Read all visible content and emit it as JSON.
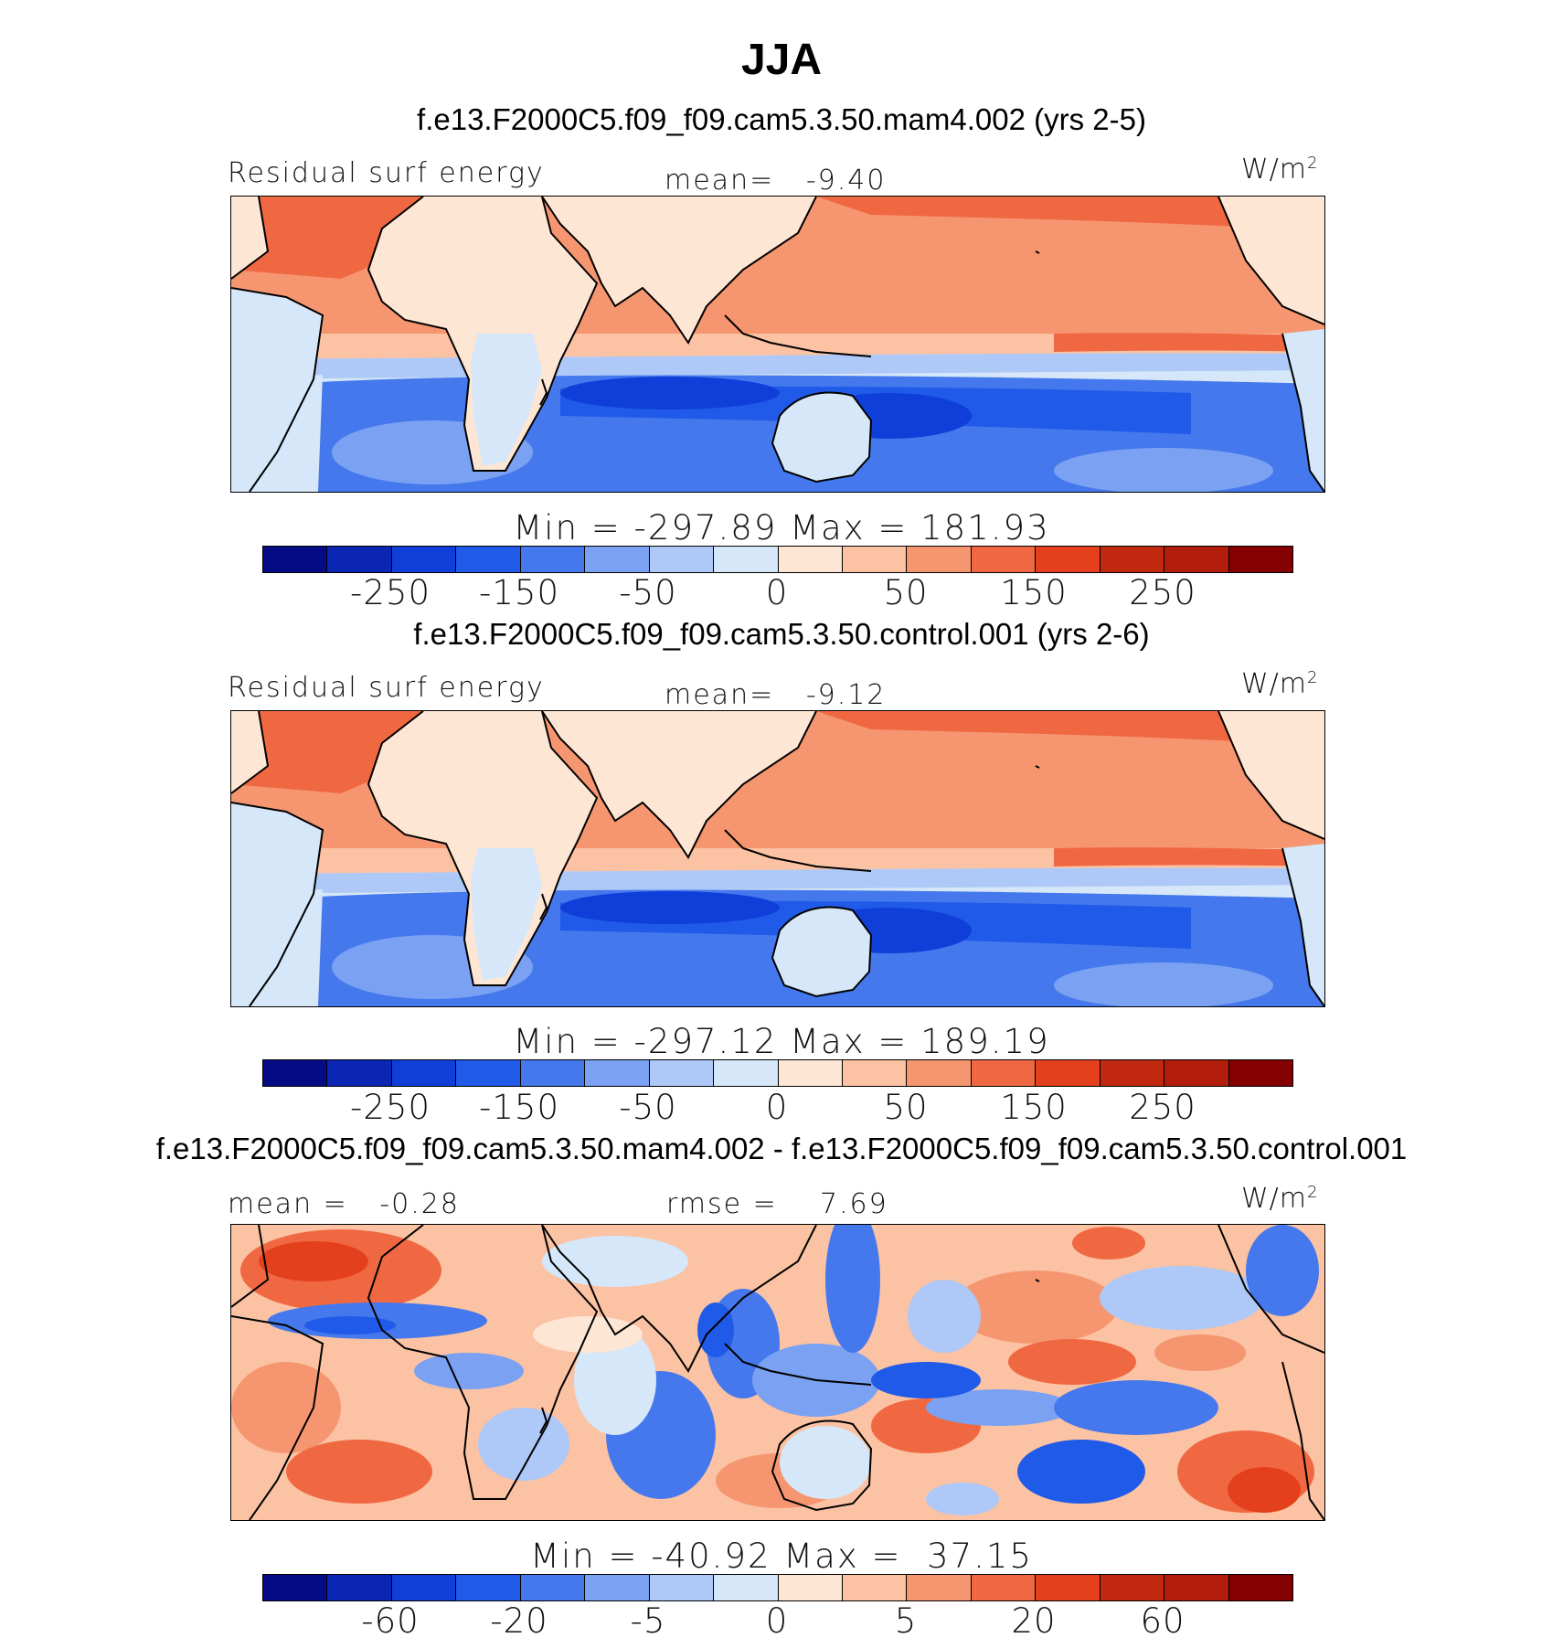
{
  "title": "JJA",
  "colorbar_colors": [
    "#050b84",
    "#0a26b3",
    "#0f3fd8",
    "#1f5ae8",
    "#4478ec",
    "#7aa1f2",
    "#aec8f7",
    "#d5e7f8",
    "#fde6d4",
    "#fbc2a3",
    "#f59671",
    "#f06842",
    "#e4401d",
    "#c02810",
    "#b21d0c",
    "#850000"
  ],
  "land_color": "#fde6d4",
  "panels": [
    {
      "case_title": "f.e13.F2000C5.f09_f09.cam5.3.50.mam4.002 (yrs 2-5)",
      "left_label": "Residual surf energy",
      "center_label": "mean=   -9.40",
      "units": "W/m",
      "units_sup": "2",
      "minmax": "Min = -297.89 Max = 181.93",
      "ticks": [
        "-250",
        "-150",
        "-50",
        "0",
        "50",
        "150",
        "250"
      ]
    },
    {
      "case_title": "f.e13.F2000C5.f09_f09.cam5.3.50.control.001 (yrs 2-6)",
      "left_label": "Residual surf energy",
      "center_label": "mean=   -9.12",
      "units": "W/m",
      "units_sup": "2",
      "minmax": "Min = -297.12 Max = 189.19",
      "ticks": [
        "-250",
        "-150",
        "-50",
        "0",
        "50",
        "150",
        "250"
      ]
    },
    {
      "case_title": "f.e13.F2000C5.f09_f09.cam5.3.50.mam4.002 - f.e13.F2000C5.f09_f09.cam5.3.50.control.001",
      "left_label": "mean =   -0.28",
      "center_label": "rmse =    7.69",
      "units": "W/m",
      "units_sup": "2",
      "minmax": "Min = -40.92 Max =  37.15",
      "ticks": [
        "-60",
        "-20",
        "-5",
        "0",
        "5",
        "20",
        "60"
      ]
    }
  ]
}
